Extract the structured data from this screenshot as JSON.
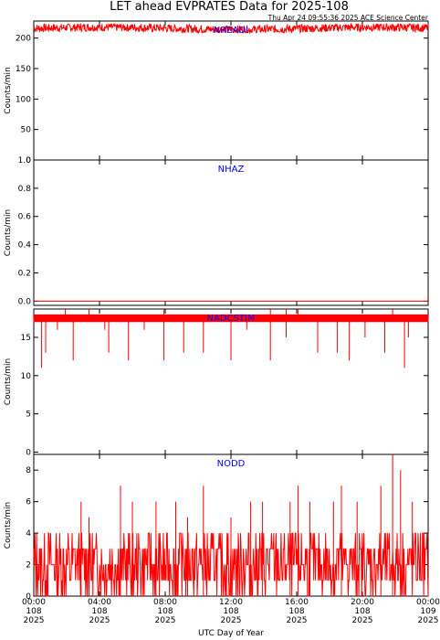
{
  "title": "LET ahead EVPRATES Data for 2025-108",
  "timestamp": "Thu Apr 24 09:55:36 2025 ACE Science Center",
  "x_axis_label": "UTC Day of Year",
  "colors": {
    "series": "#ff0000",
    "panel_label": "#0000ff",
    "axes": "#000000"
  },
  "chart_data": [
    {
      "type": "line",
      "label": "NREADI",
      "ylabel": "Counts/min",
      "ylim": [
        0,
        228
      ],
      "yticks": [
        "0",
        "50",
        "100",
        "150",
        "200"
      ],
      "pattern": {
        "kind": "band",
        "baseline": 216,
        "low": 209,
        "high": 223
      }
    },
    {
      "type": "line",
      "label": "NHAZ",
      "ylabel": "Counts/min",
      "ylim": [
        -0.03,
        1.0
      ],
      "yticks": [
        "0.0",
        "0.2",
        "0.4",
        "0.6",
        "0.8",
        "1.0"
      ],
      "pattern": {
        "kind": "flat",
        "value": 0
      }
    },
    {
      "type": "line",
      "label": "NADCSTIM",
      "ylabel": "Counts/min",
      "ylim": [
        -0.3,
        18.7
      ],
      "yticks": [
        "0",
        "5",
        "10",
        "15"
      ],
      "pattern": {
        "kind": "band_with_dips",
        "low": 17,
        "high": 18,
        "spikes_up": [
          0.08,
          0.14,
          0.33,
          0.6,
          0.64,
          0.67,
          0.91
        ],
        "spike_up_value": 18.7,
        "dips": [
          {
            "x": 0.02,
            "v": 11
          },
          {
            "x": 0.03,
            "v": 13
          },
          {
            "x": 0.06,
            "v": 16
          },
          {
            "x": 0.1,
            "v": 12
          },
          {
            "x": 0.18,
            "v": 16
          },
          {
            "x": 0.19,
            "v": 13
          },
          {
            "x": 0.24,
            "v": 12
          },
          {
            "x": 0.28,
            "v": 16
          },
          {
            "x": 0.33,
            "v": 12
          },
          {
            "x": 0.38,
            "v": 13
          },
          {
            "x": 0.43,
            "v": 13
          },
          {
            "x": 0.5,
            "v": 12
          },
          {
            "x": 0.54,
            "v": 16
          },
          {
            "x": 0.6,
            "v": 12
          },
          {
            "x": 0.64,
            "v": 15
          },
          {
            "x": 0.72,
            "v": 13
          },
          {
            "x": 0.77,
            "v": 13
          },
          {
            "x": 0.8,
            "v": 12
          },
          {
            "x": 0.84,
            "v": 15
          },
          {
            "x": 0.89,
            "v": 13
          },
          {
            "x": 0.94,
            "v": 11
          },
          {
            "x": 0.95,
            "v": 15
          },
          {
            "x": 0.97,
            "v": 17
          }
        ]
      }
    },
    {
      "type": "line",
      "label": "NODD",
      "ylabel": "Counts/min",
      "ylim": [
        0,
        9
      ],
      "yticks": [
        "0",
        "2",
        "4",
        "6",
        "8"
      ],
      "pattern": {
        "kind": "noise",
        "low": 0,
        "high": 4,
        "peaks": [
          {
            "x": 0.12,
            "v": 6
          },
          {
            "x": 0.14,
            "v": 5
          },
          {
            "x": 0.22,
            "v": 7
          },
          {
            "x": 0.25,
            "v": 6
          },
          {
            "x": 0.31,
            "v": 6
          },
          {
            "x": 0.36,
            "v": 6
          },
          {
            "x": 0.39,
            "v": 5
          },
          {
            "x": 0.43,
            "v": 7
          },
          {
            "x": 0.5,
            "v": 5
          },
          {
            "x": 0.55,
            "v": 6
          },
          {
            "x": 0.58,
            "v": 6
          },
          {
            "x": 0.65,
            "v": 6
          },
          {
            "x": 0.67,
            "v": 7
          },
          {
            "x": 0.7,
            "v": 6
          },
          {
            "x": 0.76,
            "v": 6
          },
          {
            "x": 0.78,
            "v": 7
          },
          {
            "x": 0.82,
            "v": 6
          },
          {
            "x": 0.88,
            "v": 7
          },
          {
            "x": 0.91,
            "v": 9
          },
          {
            "x": 0.93,
            "v": 8
          },
          {
            "x": 0.96,
            "v": 6
          }
        ]
      }
    }
  ],
  "x_ticks": [
    {
      "time": "00:00",
      "day": "108",
      "year": "2025"
    },
    {
      "time": "04:00",
      "day": "108",
      "year": "2025"
    },
    {
      "time": "08:00",
      "day": "108",
      "year": "2025"
    },
    {
      "time": "12:00",
      "day": "108",
      "year": "2025"
    },
    {
      "time": "16:00",
      "day": "108",
      "year": "2025"
    },
    {
      "time": "20:00",
      "day": "108",
      "year": "2025"
    },
    {
      "time": "00:00",
      "day": "109",
      "year": "2025"
    }
  ]
}
